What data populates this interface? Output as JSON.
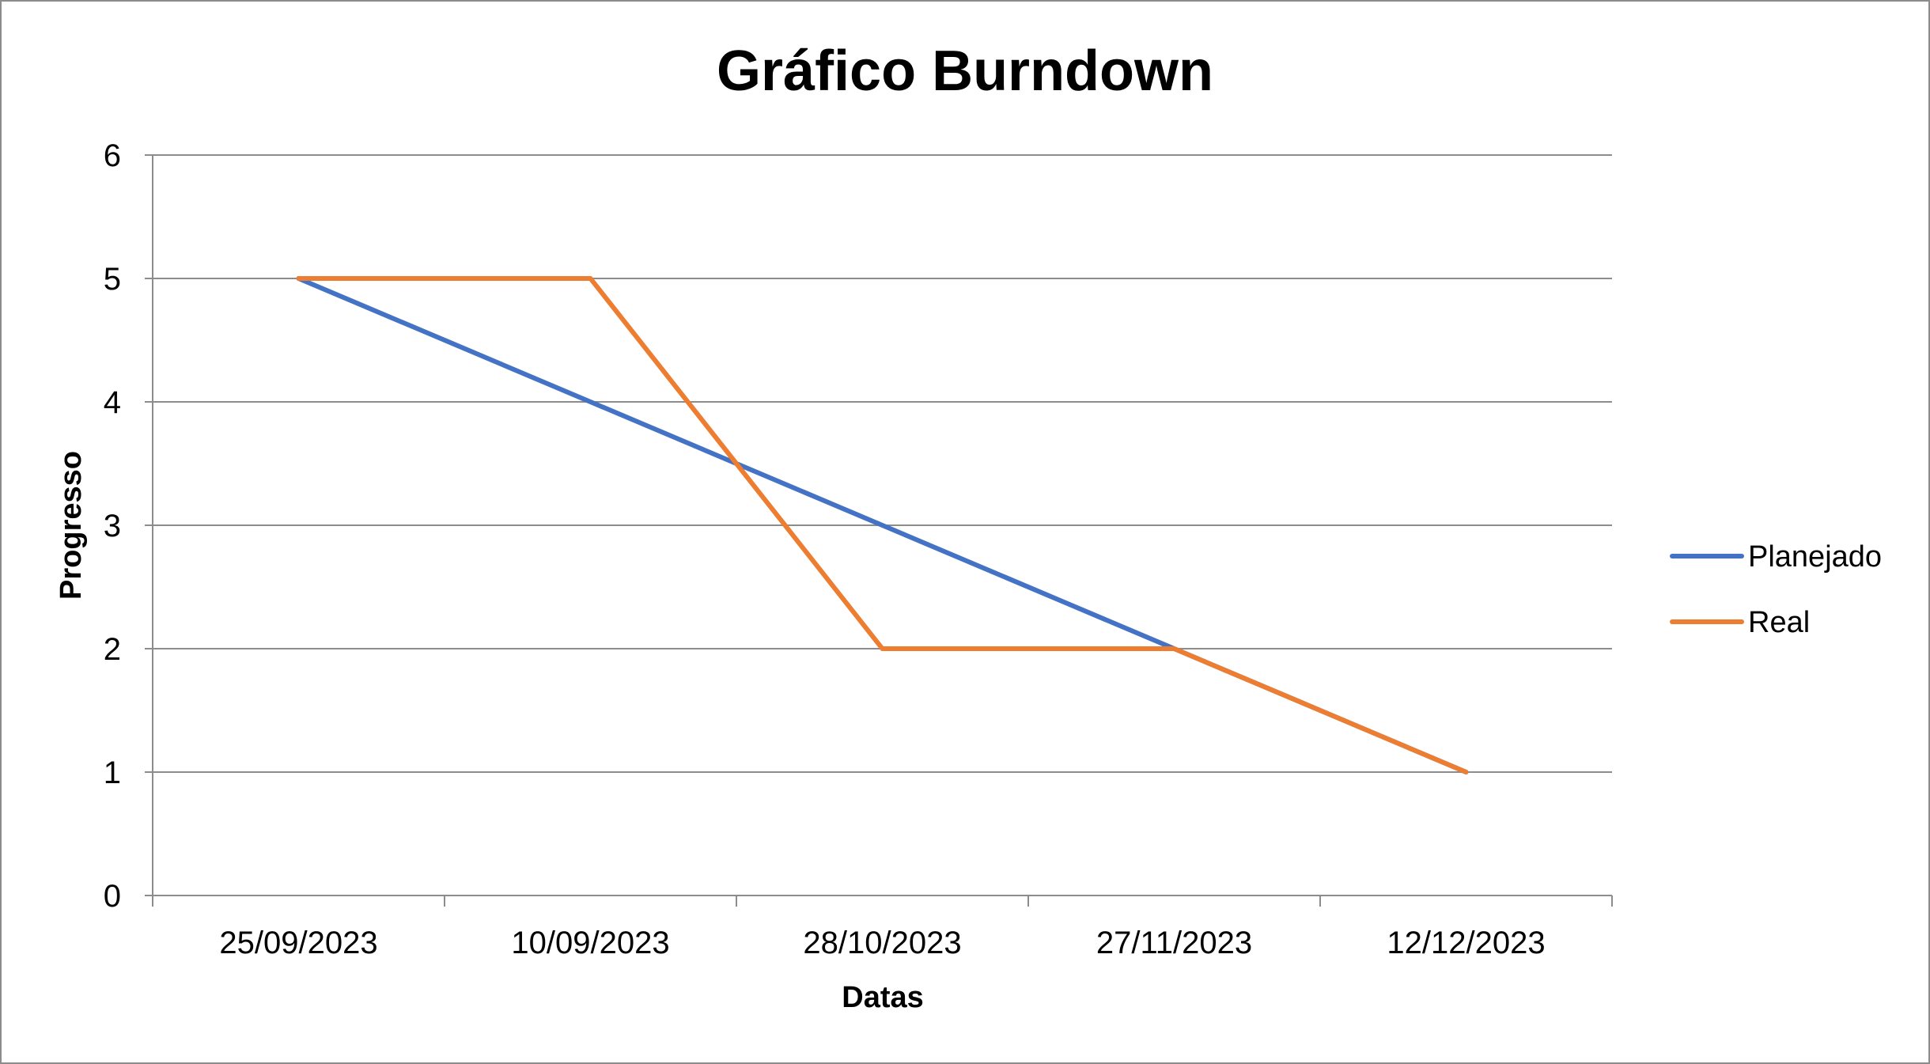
{
  "chart_data": {
    "type": "line",
    "title": "Gráfico Burndown",
    "xlabel": "Datas",
    "ylabel": "Progresso",
    "categories": [
      "25/09/2023",
      "10/09/2023",
      "28/10/2023",
      "27/11/2023",
      "12/12/2023"
    ],
    "y_ticks": [
      "0",
      "1",
      "2",
      "3",
      "4",
      "5",
      "6"
    ],
    "ylim": [
      0,
      6
    ],
    "grid": true,
    "legend_position": "right",
    "series": [
      {
        "name": "Planejado",
        "color": "#4472c4",
        "values": [
          5,
          4,
          3,
          2,
          1
        ]
      },
      {
        "name": "Real",
        "color": "#ed7d31",
        "values": [
          5,
          5,
          2,
          2,
          1
        ]
      }
    ]
  }
}
